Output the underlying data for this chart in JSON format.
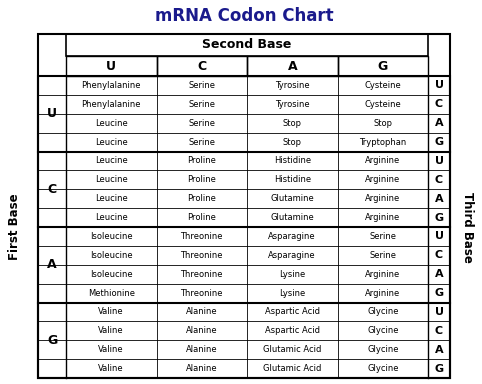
{
  "title": "mRNA Codon Chart",
  "title_color": "#1a1a8c",
  "second_base_label": "Second Base",
  "first_base_label": "First Base",
  "third_base_label": "Third Base",
  "second_bases": [
    "U",
    "C",
    "A",
    "G"
  ],
  "first_bases": [
    "U",
    "C",
    "A",
    "G"
  ],
  "third_bases": [
    "U",
    "C",
    "A",
    "G"
  ],
  "table": [
    [
      "Phenylalanine",
      "Serine",
      "Tyrosine",
      "Cysteine"
    ],
    [
      "Phenylalanine",
      "Serine",
      "Tyrosine",
      "Cysteine"
    ],
    [
      "Leucine",
      "Serine",
      "Stop",
      "Stop"
    ],
    [
      "Leucine",
      "Serine",
      "Stop",
      "Tryptophan"
    ],
    [
      "Leucine",
      "Proline",
      "Histidine",
      "Arginine"
    ],
    [
      "Leucine",
      "Proline",
      "Histidine",
      "Arginine"
    ],
    [
      "Leucine",
      "Proline",
      "Glutamine",
      "Arginine"
    ],
    [
      "Leucine",
      "Proline",
      "Glutamine",
      "Arginine"
    ],
    [
      "Isoleucine",
      "Threonine",
      "Asparagine",
      "Serine"
    ],
    [
      "Isoleucine",
      "Threonine",
      "Asparagine",
      "Serine"
    ],
    [
      "Isoleucine",
      "Threonine",
      "Lysine",
      "Arginine"
    ],
    [
      "Methionine",
      "Threonine",
      "Lysine",
      "Arginine"
    ],
    [
      "Valine",
      "Alanine",
      "Aspartic Acid",
      "Glycine"
    ],
    [
      "Valine",
      "Alanine",
      "Aspartic Acid",
      "Glycine"
    ],
    [
      "Valine",
      "Alanine",
      "Glutamic Acid",
      "Glycine"
    ],
    [
      "Valine",
      "Alanine",
      "Glutamic Acid",
      "Glycine"
    ]
  ],
  "bg_color": "#ffffff",
  "title_fontsize": 12,
  "header_fontsize": 9,
  "base_letter_fontsize": 9,
  "cell_fontsize": 6.0,
  "third_base_letter_fontsize": 8
}
